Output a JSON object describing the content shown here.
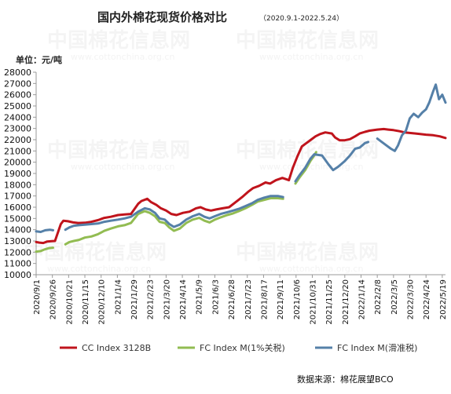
{
  "chart_data": {
    "type": "line",
    "title": "国内外棉花现货价格对比",
    "subtitle": "（2020.9.1-2022.5.24）",
    "ylabel": "单位：元/吨",
    "ylim": [
      10000,
      28000
    ],
    "yticks": [
      10000,
      11000,
      12000,
      13000,
      14000,
      15000,
      16000,
      17000,
      18000,
      19000,
      20000,
      21000,
      22000,
      23000,
      24000,
      25000,
      26000,
      27000,
      28000
    ],
    "x_range": [
      "2020/9/1",
      "2022/5/24"
    ],
    "x_ticks": [
      "2020/9/1",
      "2020/9/26",
      "2020/10/21",
      "2020/11/15",
      "2020/12/10",
      "2021/1/4",
      "2021/1/29",
      "2021/2/23",
      "2021/3/20",
      "2021/4/14",
      "2021/5/9",
      "2021/6/3",
      "2021/6/28",
      "2021/7/23",
      "2021/8/17",
      "2021/9/11",
      "2021/10/6",
      "2021/10/31",
      "2021/11/25",
      "2021/12/20",
      "2022/1/14",
      "2022/2/8",
      "2022/3/5",
      "2022/3/30",
      "2022/4/24",
      "2022/5/19"
    ],
    "grid": false,
    "legend_position": "bottom",
    "series": [
      {
        "name": "CC Index 3128B",
        "color": "#c0141c",
        "points": [
          [
            "2020/9/1",
            12900
          ],
          [
            "2020/9/6",
            12850
          ],
          [
            "2020/9/12",
            12820
          ],
          [
            "2020/9/18",
            12950
          ],
          [
            "2020/9/25",
            12980
          ],
          [
            "2020/9/30",
            13000
          ],
          [
            "2020/10/9",
            14500
          ],
          [
            "2020/10/13",
            14800
          ],
          [
            "2020/10/20",
            14750
          ],
          [
            "2020/10/28",
            14650
          ],
          [
            "2020/11/5",
            14600
          ],
          [
            "2020/11/15",
            14620
          ],
          [
            "2020/11/25",
            14700
          ],
          [
            "2020/12/5",
            14850
          ],
          [
            "2020/12/15",
            15050
          ],
          [
            "2020/12/25",
            15150
          ],
          [
            "2021/1/5",
            15300
          ],
          [
            "2021/1/15",
            15350
          ],
          [
            "2021/1/25",
            15400
          ],
          [
            "2021/2/5",
            16300
          ],
          [
            "2021/2/10",
            16550
          ],
          [
            "2021/2/19",
            16750
          ],
          [
            "2021/2/25",
            16450
          ],
          [
            "2021/3/5",
            16200
          ],
          [
            "2021/3/12",
            15900
          ],
          [
            "2021/3/20",
            15700
          ],
          [
            "2021/3/28",
            15400
          ],
          [
            "2021/4/5",
            15300
          ],
          [
            "2021/4/15",
            15500
          ],
          [
            "2021/4/25",
            15600
          ],
          [
            "2021/5/5",
            15900
          ],
          [
            "2021/5/12",
            16000
          ],
          [
            "2021/5/20",
            15800
          ],
          [
            "2021/5/28",
            15700
          ],
          [
            "2021/6/5",
            15800
          ],
          [
            "2021/6/15",
            15900
          ],
          [
            "2021/6/25",
            16000
          ],
          [
            "2021/7/5",
            16450
          ],
          [
            "2021/7/15",
            16900
          ],
          [
            "2021/7/25",
            17400
          ],
          [
            "2021/8/1",
            17700
          ],
          [
            "2021/8/10",
            17900
          ],
          [
            "2021/8/20",
            18200
          ],
          [
            "2021/8/27",
            18100
          ],
          [
            "2021/9/5",
            18400
          ],
          [
            "2021/9/15",
            18600
          ],
          [
            "2021/9/25",
            18400
          ],
          [
            "2021/10/1",
            19500
          ],
          [
            "2021/10/8",
            20500
          ],
          [
            "2021/10/15",
            21400
          ],
          [
            "2021/10/22",
            21700
          ],
          [
            "2021/10/29",
            22000
          ],
          [
            "2021/11/5",
            22300
          ],
          [
            "2021/11/12",
            22500
          ],
          [
            "2021/11/20",
            22650
          ],
          [
            "2021/11/30",
            22550
          ],
          [
            "2021/12/5",
            22200
          ],
          [
            "2021/12/12",
            21950
          ],
          [
            "2021/12/20",
            21950
          ],
          [
            "2021/12/28",
            22050
          ],
          [
            "2022/1/5",
            22300
          ],
          [
            "2022/1/12",
            22550
          ],
          [
            "2022/1/20",
            22700
          ],
          [
            "2022/1/27",
            22800
          ],
          [
            "2022/2/8",
            22900
          ],
          [
            "2022/2/18",
            22950
          ],
          [
            "2022/2/25",
            22900
          ],
          [
            "2022/3/5",
            22850
          ],
          [
            "2022/3/15",
            22750
          ],
          [
            "2022/3/22",
            22650
          ],
          [
            "2022/3/30",
            22600
          ],
          [
            "2022/4/8",
            22550
          ],
          [
            "2022/4/15",
            22500
          ],
          [
            "2022/4/24",
            22450
          ],
          [
            "2022/5/5",
            22400
          ],
          [
            "2022/5/15",
            22300
          ],
          [
            "2022/5/24",
            22150
          ]
        ]
      },
      {
        "name": "FC Index M(1%关税)",
        "color": "#92bc52",
        "points": [
          [
            "2020/9/1",
            12050
          ],
          [
            "2020/9/8",
            12100
          ],
          [
            "2020/9/14",
            12250
          ],
          [
            "2020/9/20",
            12350
          ],
          [
            "2020/9/27",
            12400
          ],
          [
            "2020/10/16",
            12700
          ],
          [
            "2020/10/22",
            12900
          ],
          [
            "2020/10/29",
            13000
          ],
          [
            "2020/11/6",
            13100
          ],
          [
            "2020/11/15",
            13300
          ],
          [
            "2020/11/25",
            13400
          ],
          [
            "2020/12/5",
            13600
          ],
          [
            "2020/12/15",
            13900
          ],
          [
            "2020/12/25",
            14100
          ],
          [
            "2021/1/5",
            14300
          ],
          [
            "2021/1/15",
            14400
          ],
          [
            "2021/1/25",
            14600
          ],
          [
            "2021/2/5",
            15400
          ],
          [
            "2021/2/15",
            15650
          ],
          [
            "2021/2/23",
            15500
          ],
          [
            "2021/3/3",
            15200
          ],
          [
            "2021/3/10",
            14700
          ],
          [
            "2021/3/18",
            14600
          ],
          [
            "2021/3/25",
            14200
          ],
          [
            "2021/4/1",
            13900
          ],
          [
            "2021/4/10",
            14100
          ],
          [
            "2021/4/20",
            14600
          ],
          [
            "2021/4/30",
            14900
          ],
          [
            "2021/5/10",
            15050
          ],
          [
            "2021/5/18",
            14800
          ],
          [
            "2021/5/26",
            14650
          ],
          [
            "2021/6/3",
            14900
          ],
          [
            "2021/6/12",
            15100
          ],
          [
            "2021/6/22",
            15300
          ],
          [
            "2021/7/1",
            15450
          ],
          [
            "2021/7/10",
            15650
          ],
          [
            "2021/7/20",
            15900
          ],
          [
            "2021/7/30",
            16200
          ],
          [
            "2021/8/8",
            16500
          ],
          [
            "2021/8/18",
            16650
          ],
          [
            "2021/8/28",
            16800
          ],
          [
            "2021/9/8",
            16800
          ],
          [
            "2021/9/16",
            16750
          ],
          [
            "2021/10/5",
            18100
          ],
          [
            "2021/10/12",
            18700
          ],
          [
            "2021/10/20",
            19300
          ],
          [
            "2021/10/28",
            20100
          ],
          [
            "2021/11/3",
            20600
          ],
          [
            "2021/11/6",
            20900
          ]
        ]
      },
      {
        "name": "FC Index M(滑准税)",
        "color": "#5580a8",
        "points": [
          [
            "2020/9/1",
            13850
          ],
          [
            "2020/9/8",
            13800
          ],
          [
            "2020/9/15",
            13950
          ],
          [
            "2020/9/22",
            14000
          ],
          [
            "2020/9/27",
            13950
          ],
          [
            "2020/10/16",
            14000
          ],
          [
            "2020/10/22",
            14200
          ],
          [
            "2020/10/29",
            14350
          ],
          [
            "2020/11/6",
            14400
          ],
          [
            "2020/11/15",
            14450
          ],
          [
            "2020/11/25",
            14500
          ],
          [
            "2020/12/5",
            14550
          ],
          [
            "2020/12/15",
            14700
          ],
          [
            "2020/12/25",
            14800
          ],
          [
            "2021/1/5",
            14900
          ],
          [
            "2021/1/15",
            15000
          ],
          [
            "2021/1/25",
            15150
          ],
          [
            "2021/2/5",
            15600
          ],
          [
            "2021/2/15",
            15900
          ],
          [
            "2021/2/23",
            15800
          ],
          [
            "2021/3/3",
            15500
          ],
          [
            "2021/3/10",
            15000
          ],
          [
            "2021/3/18",
            14900
          ],
          [
            "2021/3/25",
            14500
          ],
          [
            "2021/4/1",
            14250
          ],
          [
            "2021/4/10",
            14450
          ],
          [
            "2021/4/20",
            14900
          ],
          [
            "2021/4/30",
            15200
          ],
          [
            "2021/5/10",
            15400
          ],
          [
            "2021/5/18",
            15150
          ],
          [
            "2021/5/26",
            15000
          ],
          [
            "2021/6/3",
            15200
          ],
          [
            "2021/6/12",
            15400
          ],
          [
            "2021/6/22",
            15550
          ],
          [
            "2021/7/1",
            15700
          ],
          [
            "2021/7/10",
            15850
          ],
          [
            "2021/7/20",
            16100
          ],
          [
            "2021/7/30",
            16350
          ],
          [
            "2021/8/8",
            16650
          ],
          [
            "2021/8/18",
            16850
          ],
          [
            "2021/8/28",
            17000
          ],
          [
            "2021/9/8",
            17000
          ],
          [
            "2021/9/16",
            16900
          ],
          [
            "2021/10/5",
            18300
          ],
          [
            "2021/10/12",
            18900
          ],
          [
            "2021/10/20",
            19500
          ],
          [
            "2021/10/28",
            20300
          ],
          [
            "2021/11/3",
            20700
          ],
          [
            "2021/11/15",
            20600
          ],
          [
            "2021/11/25",
            19800
          ],
          [
            "2021/12/2",
            19300
          ],
          [
            "2021/12/10",
            19600
          ],
          [
            "2021/12/20",
            20100
          ],
          [
            "2021/12/28",
            20600
          ],
          [
            "2022/1/5",
            21200
          ],
          [
            "2022/1/12",
            21300
          ],
          [
            "2022/1/20",
            21700
          ],
          [
            "2022/1/25",
            21800
          ],
          [
            "2022/2/8",
            22100
          ],
          [
            "2022/2/15",
            21800
          ],
          [
            "2022/2/22",
            21500
          ],
          [
            "2022/3/1",
            21200
          ],
          [
            "2022/3/7",
            21000
          ],
          [
            "2022/3/12",
            21500
          ],
          [
            "2022/3/18",
            22400
          ],
          [
            "2022/3/24",
            22800
          ],
          [
            "2022/3/30",
            23900
          ],
          [
            "2022/4/5",
            24300
          ],
          [
            "2022/4/12",
            24000
          ],
          [
            "2022/4/18",
            24400
          ],
          [
            "2022/4/24",
            24700
          ],
          [
            "2022/4/29",
            25300
          ],
          [
            "2022/5/5",
            26300
          ],
          [
            "2022/5/9",
            26900
          ],
          [
            "2022/5/14",
            25600
          ],
          [
            "2022/5/19",
            26000
          ],
          [
            "2022/5/24",
            25300
          ]
        ]
      }
    ]
  },
  "watermark": {
    "text": "中国棉花信息网",
    "url": "www.cottonchina.org.cn"
  },
  "source": "数据来源：棉花展望BCO"
}
